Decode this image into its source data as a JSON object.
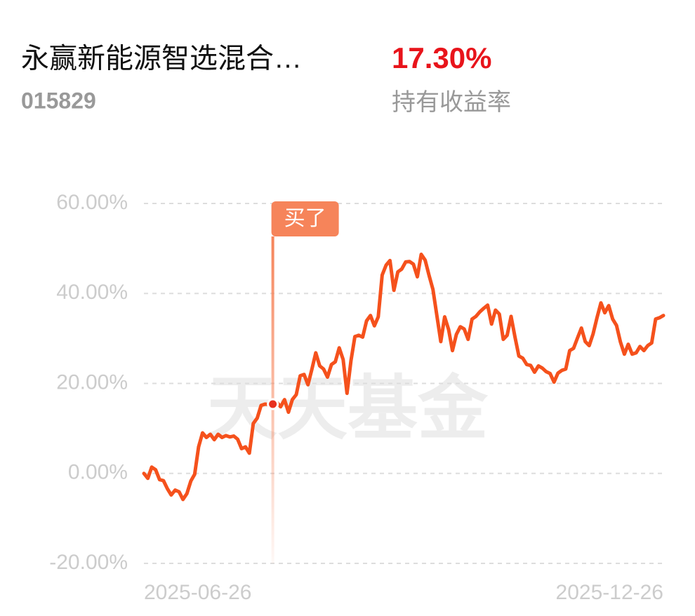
{
  "header": {
    "title": "永赢新能源智选混合…",
    "code": "015829",
    "return": "17.30%",
    "return_label": "持有收益率"
  },
  "chart_data": {
    "type": "line",
    "watermark": "天天基金",
    "categories": [
      "2025-06-26",
      null,
      null,
      null,
      null,
      null,
      null,
      null,
      null,
      null,
      null,
      null,
      null,
      null,
      null,
      null,
      null,
      null,
      null,
      null,
      null,
      null,
      null,
      null,
      null,
      null,
      null,
      null,
      null,
      null,
      null,
      null,
      null,
      null,
      null,
      null,
      null,
      null,
      null,
      null,
      null,
      null,
      null,
      null,
      null,
      null,
      null,
      null,
      null,
      null,
      null,
      null,
      null,
      null,
      null,
      null,
      null,
      null,
      null,
      null,
      null,
      null,
      null,
      null,
      null,
      null,
      null,
      null,
      null,
      null,
      null,
      null,
      null,
      null,
      null,
      null,
      null,
      null,
      null,
      null,
      null,
      null,
      null,
      null,
      null,
      null,
      null,
      null,
      null,
      null,
      null,
      null,
      null,
      null,
      null,
      null,
      null,
      null,
      null,
      null,
      null,
      null,
      null,
      null,
      null,
      null,
      null,
      null,
      null,
      null,
      null,
      null,
      null,
      null,
      null,
      null,
      null,
      null,
      null,
      null,
      null,
      null,
      null,
      null,
      null,
      null,
      null,
      null,
      null,
      null,
      null,
      null,
      null,
      "2025-12-26"
    ],
    "series": [
      {
        "color": "#f5511c",
        "values": [
          0,
          -1.1,
          1.4,
          0.8,
          -1.4,
          -1.6,
          -3.4,
          -4.8,
          -3.7,
          -4.1,
          -5.8,
          -4.5,
          -1.7,
          -0.2,
          5.9,
          9.0,
          8.0,
          8.7,
          7.5,
          8.7,
          8.0,
          8.4,
          8.1,
          8.3,
          7.6,
          5.5,
          5.9,
          4.5,
          11.1,
          12.3,
          15.1,
          15.4,
          15.3,
          15.4,
          15.8,
          14.8,
          16.4,
          13.6,
          16.4,
          17.5,
          21.7,
          22.0,
          19.7,
          23.1,
          26.8,
          23.9,
          23.2,
          21.4,
          24.2,
          24.8,
          27.9,
          25.3,
          17.8,
          25.0,
          30.4,
          30.7,
          30.3,
          33.9,
          35.1,
          32.8,
          34.8,
          44.1,
          46.3,
          47.3,
          40.7,
          44.8,
          45.4,
          47.0,
          47.1,
          46.5,
          43.7,
          48.7,
          47.4,
          44.0,
          40.9,
          35.1,
          29.3,
          34.8,
          32.0,
          27.3,
          30.9,
          32.6,
          32.1,
          29.8,
          34.3,
          34.9,
          35.9,
          36.7,
          37.4,
          33.2,
          36.3,
          35.4,
          29.8,
          30.7,
          34.9,
          30.3,
          26.1,
          25.6,
          24.2,
          24.0,
          22.5,
          23.9,
          23.4,
          22.6,
          22.2,
          20.3,
          22.3,
          22.9,
          23.2,
          27.3,
          27.8,
          30.1,
          32.3,
          29.3,
          28.4,
          31.0,
          34.6,
          37.9,
          35.7,
          37.3,
          34.3,
          32.9,
          29.2,
          26.5,
          28.7,
          26.5,
          26.8,
          28.2,
          27.3,
          28.4,
          29.0,
          34.3,
          34.6,
          35.1
        ]
      }
    ],
    "annotation": {
      "text": "买了",
      "index": 33,
      "color": "#f6845a"
    },
    "ylim": [
      -20,
      60
    ],
    "yticks": [
      {
        "value": -20,
        "label": "-20.00%"
      },
      {
        "value": 0,
        "label": "0.00%"
      },
      {
        "value": 20,
        "label": "20.00%"
      },
      {
        "value": 40,
        "label": "40.00%"
      },
      {
        "value": 60,
        "label": "60.00%"
      }
    ],
    "grid": true
  }
}
